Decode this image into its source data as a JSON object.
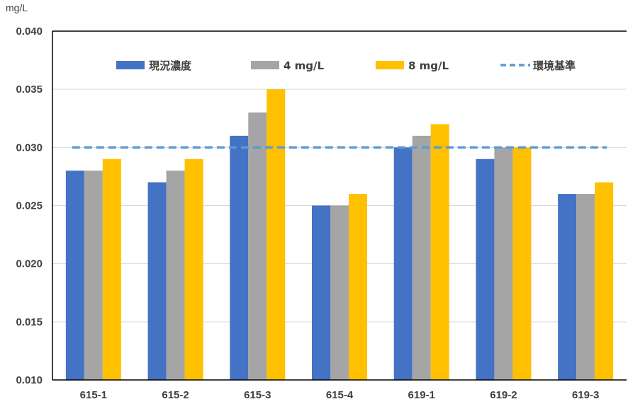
{
  "chart_data": {
    "type": "bar",
    "unit_label": "mg/L",
    "categories": [
      "615-1",
      "615-2",
      "615-3",
      "615-4",
      "619-1",
      "619-2",
      "619-3"
    ],
    "series": [
      {
        "name": "現況濃度",
        "color": "#4472C4",
        "values": [
          0.028,
          0.027,
          0.031,
          0.025,
          0.03,
          0.029,
          0.026
        ]
      },
      {
        "name": "4 mg/L",
        "color": "#A5A5A5",
        "values": [
          0.028,
          0.028,
          0.033,
          0.025,
          0.031,
          0.03,
          0.026
        ]
      },
      {
        "name": "8 mg/L",
        "color": "#FFC000",
        "values": [
          0.029,
          0.029,
          0.035,
          0.026,
          0.032,
          0.03,
          0.027
        ]
      }
    ],
    "reference_line": {
      "name": "環境基準",
      "value": 0.03,
      "color": "#5B9BD5",
      "style": "dashed"
    },
    "ylim": [
      0.01,
      0.04
    ],
    "yticks": [
      "0.010",
      "0.015",
      "0.020",
      "0.025",
      "0.030",
      "0.035",
      "0.040"
    ],
    "grid": true,
    "legend_position": "top"
  }
}
